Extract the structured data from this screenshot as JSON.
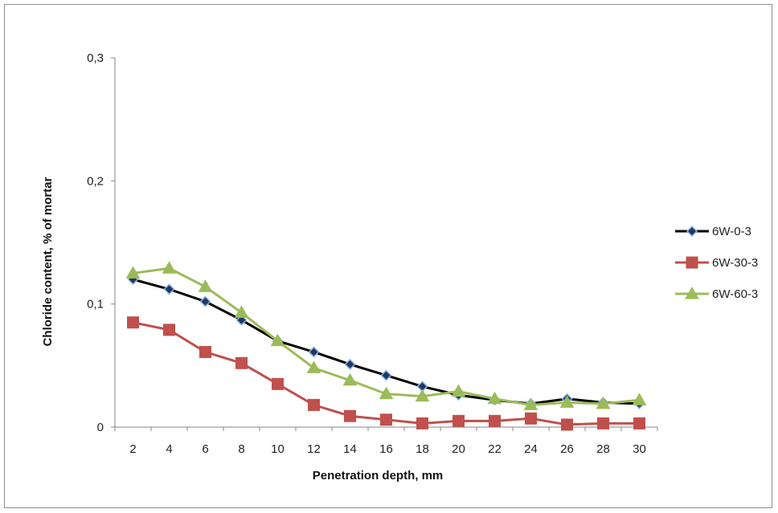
{
  "chart_data": {
    "type": "line",
    "title": "",
    "xlabel": "Penetration depth, mm",
    "ylabel": "Chloride content, % of mortar",
    "x": [
      2,
      4,
      6,
      8,
      10,
      12,
      14,
      16,
      18,
      20,
      22,
      24,
      26,
      28,
      30
    ],
    "x_tick_labels": [
      "2",
      "4",
      "6",
      "8",
      "10",
      "12",
      "14",
      "16",
      "18",
      "20",
      "22",
      "24",
      "26",
      "28",
      "30"
    ],
    "ylim": [
      0,
      0.3
    ],
    "y_ticks": [
      0,
      0.1,
      0.2,
      0.3
    ],
    "y_tick_labels": [
      "0",
      "0,1",
      "0,2",
      "0,3"
    ],
    "grid": false,
    "legend_position": "right",
    "series": [
      {
        "name": "6W-0-3",
        "color": "#000000",
        "marker": "diamond",
        "marker_fill": "#1f3864",
        "marker_stroke": "#8eb4e3",
        "values": [
          0.12,
          0.112,
          0.102,
          0.087,
          0.07,
          0.061,
          0.051,
          0.042,
          0.033,
          0.026,
          0.022,
          0.019,
          0.023,
          0.02,
          0.019
        ]
      },
      {
        "name": "6W-30-3",
        "color": "#c0504d",
        "marker": "square",
        "values": [
          0.085,
          0.079,
          0.061,
          0.052,
          0.035,
          0.018,
          0.009,
          0.006,
          0.003,
          0.005,
          0.005,
          0.007,
          0.002,
          0.003,
          0.003
        ]
      },
      {
        "name": "6W-60-3",
        "color": "#9bbb59",
        "marker": "triangle",
        "values": [
          0.125,
          0.129,
          0.114,
          0.093,
          0.07,
          0.048,
          0.038,
          0.027,
          0.025,
          0.029,
          0.023,
          0.018,
          0.02,
          0.019,
          0.022
        ]
      }
    ]
  }
}
